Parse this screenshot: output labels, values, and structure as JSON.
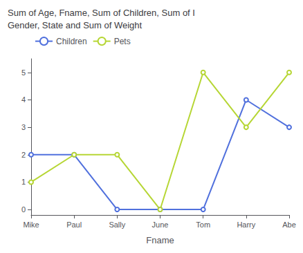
{
  "chart_data": {
    "type": "line",
    "title": "Sum of Age, Fname, Sum of Children, Sum of I\nGender, State and Sum of Weight",
    "xlabel": "Fname",
    "categories": [
      "Mike",
      "Paul",
      "Sally",
      "June",
      "Tom",
      "Harry",
      "Abe"
    ],
    "series": [
      {
        "name": "Children",
        "values": [
          2,
          2,
          0,
          0,
          0,
          4,
          3
        ]
      },
      {
        "name": "Pets",
        "values": [
          1,
          2,
          2,
          0,
          5,
          3,
          5
        ]
      }
    ],
    "ylim": [
      -0.2,
      5.5
    ],
    "yticks": [
      0,
      1,
      2,
      3,
      4,
      5
    ],
    "grid": false,
    "legend": "upper left"
  }
}
